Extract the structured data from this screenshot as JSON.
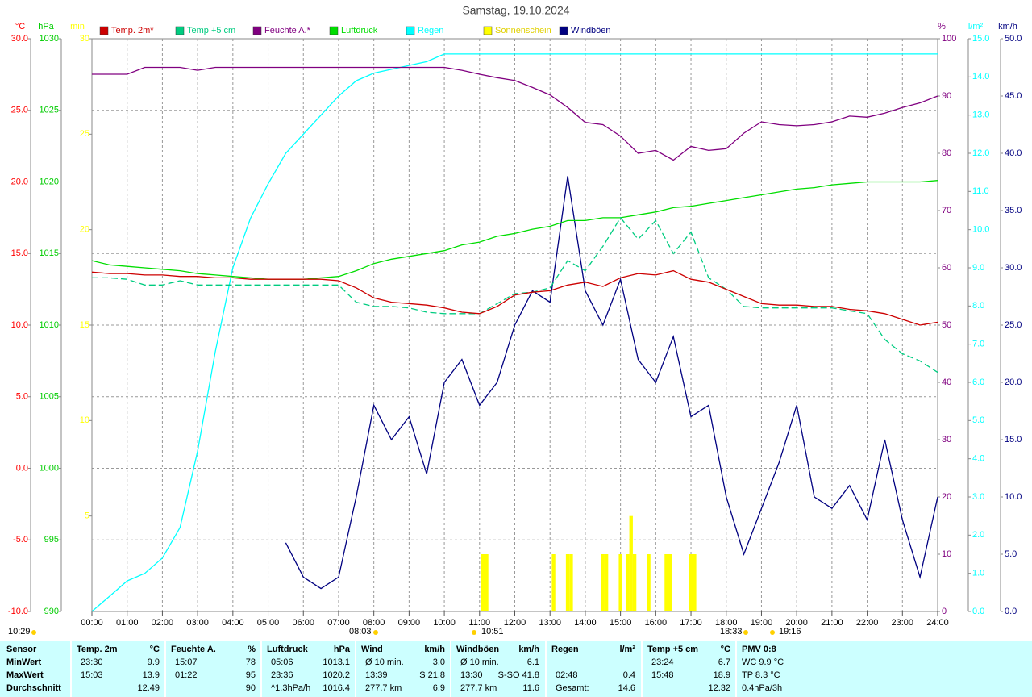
{
  "chart_data": {
    "type": "line",
    "title": "Samstag, 19.10.2024",
    "xlim": [
      0,
      24
    ],
    "xticks": [
      {
        "value": 0,
        "label": "00:00"
      },
      {
        "value": 1,
        "label": "01:00"
      },
      {
        "value": 2,
        "label": "02:00"
      },
      {
        "value": 3,
        "label": "03:00"
      },
      {
        "value": 4,
        "label": "04:00"
      },
      {
        "value": 5,
        "label": "05:00"
      },
      {
        "value": 6,
        "label": "06:00"
      },
      {
        "value": 7,
        "label": "07:00"
      },
      {
        "value": 8,
        "label": "08:00"
      },
      {
        "value": 9,
        "label": "09:00"
      },
      {
        "value": 10,
        "label": "10:00"
      },
      {
        "value": 11,
        "label": "11:00"
      },
      {
        "value": 12,
        "label": "12:00"
      },
      {
        "value": 13,
        "label": "13:00"
      },
      {
        "value": 14,
        "label": "14:00"
      },
      {
        "value": 15,
        "label": "15:00"
      },
      {
        "value": 16,
        "label": "16:00"
      },
      {
        "value": 17,
        "label": "17:00"
      },
      {
        "value": 18,
        "label": "18:00"
      },
      {
        "value": 19,
        "label": "19:00"
      },
      {
        "value": 20,
        "label": "20:00"
      },
      {
        "value": 21,
        "label": "21:00"
      },
      {
        "value": 22,
        "label": "22:00"
      },
      {
        "value": 23,
        "label": "23:00"
      },
      {
        "value": 24,
        "label": "24:00"
      }
    ],
    "grid": true,
    "axes": [
      {
        "unit": "°C",
        "color": "#ff0000",
        "lim": [
          -10,
          30
        ],
        "ticks": [
          {
            "value": -10,
            "label": "-10.0"
          },
          {
            "value": -5,
            "label": "-5.0"
          },
          {
            "value": 0,
            "label": "0.0"
          },
          {
            "value": 5,
            "label": "5.0"
          },
          {
            "value": 10,
            "label": "10.0"
          },
          {
            "value": 15,
            "label": "15.0"
          },
          {
            "value": 20,
            "label": "20.0"
          },
          {
            "value": 25,
            "label": "25.0"
          },
          {
            "value": 30,
            "label": "30.0"
          }
        ]
      },
      {
        "unit": "hPa",
        "color": "#00cc00",
        "lim": [
          990,
          1030
        ],
        "ticks": [
          990,
          995,
          1000,
          1005,
          1010,
          1015,
          1020,
          1025,
          1030
        ]
      },
      {
        "unit": "min",
        "color": "#ffff00",
        "lim": [
          0,
          30
        ],
        "ticks": [
          5,
          10,
          15,
          20,
          25,
          30
        ]
      },
      {
        "unit": "%",
        "color": "#800080",
        "lim": [
          0,
          100
        ],
        "ticks": [
          0,
          10,
          20,
          30,
          40,
          50,
          60,
          70,
          80,
          90,
          100
        ]
      },
      {
        "unit": "l/m²",
        "color": "#00ffff",
        "lim": [
          0,
          15
        ],
        "ticks": [
          {
            "value": 0,
            "label": "0.0"
          },
          {
            "value": 1,
            "label": "1.0"
          },
          {
            "value": 2,
            "label": "2.0"
          },
          {
            "value": 3,
            "label": "3.0"
          },
          {
            "value": 4,
            "label": "4.0"
          },
          {
            "value": 5,
            "label": "5.0"
          },
          {
            "value": 6,
            "label": "6.0"
          },
          {
            "value": 7,
            "label": "7.0"
          },
          {
            "value": 8,
            "label": "8.0"
          },
          {
            "value": 9,
            "label": "9.0"
          },
          {
            "value": 10,
            "label": "10.0"
          },
          {
            "value": 11,
            "label": "11.0"
          },
          {
            "value": 12,
            "label": "12.0"
          },
          {
            "value": 13,
            "label": "13.0"
          },
          {
            "value": 14,
            "label": "14.0"
          },
          {
            "value": 15,
            "label": "15.0"
          }
        ]
      },
      {
        "unit": "km/h",
        "color": "#000080",
        "lim": [
          0,
          50
        ],
        "ticks": [
          {
            "value": 0,
            "label": "0.0"
          },
          {
            "value": 5,
            "label": "5.0"
          },
          {
            "value": 10,
            "label": "10.0"
          },
          {
            "value": 15,
            "label": "15.0"
          },
          {
            "value": 20,
            "label": "20.0"
          },
          {
            "value": 25,
            "label": "25.0"
          },
          {
            "value": 30,
            "label": "30.0"
          },
          {
            "value": 35,
            "label": "35.0"
          },
          {
            "value": 40,
            "label": "40.0"
          },
          {
            "value": 45,
            "label": "45.0"
          },
          {
            "value": 50,
            "label": "50.0"
          }
        ]
      }
    ],
    "x": [
      0,
      0.5,
      1,
      1.5,
      2,
      2.5,
      3,
      3.5,
      4,
      4.5,
      5,
      5.5,
      6,
      6.5,
      7,
      7.5,
      8,
      8.5,
      9,
      9.5,
      10,
      10.5,
      11,
      11.5,
      12,
      12.5,
      13,
      13.5,
      14,
      14.5,
      15,
      15.5,
      16,
      16.5,
      17,
      17.5,
      18,
      18.5,
      19,
      19.5,
      20,
      20.5,
      21,
      21.5,
      22,
      22.5,
      23,
      23.5,
      24
    ],
    "series": [
      {
        "name": "Temp. 2m*",
        "color": "#cc0000",
        "axis": 0,
        "values": [
          13.7,
          13.6,
          13.6,
          13.5,
          13.5,
          13.4,
          13.4,
          13.3,
          13.3,
          13.2,
          13.2,
          13.2,
          13.2,
          13.2,
          13.1,
          12.6,
          11.9,
          11.6,
          11.5,
          11.4,
          11.2,
          10.9,
          10.8,
          11.3,
          12.1,
          12.3,
          12.4,
          12.8,
          13.0,
          12.7,
          13.3,
          13.6,
          13.5,
          13.8,
          13.2,
          13.0,
          12.5,
          12.0,
          11.5,
          11.4,
          11.4,
          11.3,
          11.3,
          11.1,
          11.0,
          10.8,
          10.4,
          10.0,
          10.2
        ]
      },
      {
        "name": "Temp +5 cm",
        "color": "#00cc80",
        "axis": 0,
        "dashed": true,
        "values": [
          13.3,
          13.3,
          13.2,
          12.8,
          12.8,
          13.1,
          12.8,
          12.8,
          12.8,
          12.8,
          12.8,
          12.8,
          12.8,
          12.8,
          12.8,
          11.6,
          11.3,
          11.3,
          11.2,
          10.9,
          10.8,
          10.8,
          10.8,
          11.5,
          12.2,
          12.3,
          12.6,
          14.5,
          13.8,
          15.5,
          17.5,
          16.0,
          17.3,
          15.0,
          16.5,
          13.3,
          12.5,
          11.3,
          11.2,
          11.2,
          11.2,
          11.2,
          11.2,
          11.0,
          10.8,
          9.0,
          8.0,
          7.5,
          6.7
        ]
      },
      {
        "name": "Feuchte A.*",
        "color": "#800080",
        "axis": 3,
        "values": [
          93.8,
          93.8,
          93.8,
          95,
          95,
          95,
          94.5,
          95,
          95,
          95,
          95,
          95,
          95,
          95,
          95,
          95,
          95,
          95,
          95,
          95,
          95,
          94.5,
          93.8,
          93.2,
          92.7,
          91.5,
          90.2,
          88,
          85.4,
          85,
          83,
          80,
          80.5,
          78.8,
          81.2,
          80.5,
          80.8,
          83.5,
          85.5,
          85,
          84.8,
          85,
          85.5,
          86.5,
          86.3,
          87,
          88,
          88.8,
          90
        ]
      },
      {
        "name": "Luftdruck",
        "color": "#00dd00",
        "axis": 1,
        "values": [
          1014.5,
          1014.2,
          1014.1,
          1014.0,
          1013.9,
          1013.8,
          1013.6,
          1013.5,
          1013.4,
          1013.3,
          1013.2,
          1013.2,
          1013.2,
          1013.3,
          1013.4,
          1013.8,
          1014.3,
          1014.6,
          1014.8,
          1015.0,
          1015.2,
          1015.6,
          1015.8,
          1016.2,
          1016.4,
          1016.7,
          1016.9,
          1017.3,
          1017.3,
          1017.5,
          1017.5,
          1017.7,
          1017.9,
          1018.2,
          1018.3,
          1018.5,
          1018.7,
          1018.9,
          1019.1,
          1019.3,
          1019.5,
          1019.6,
          1019.8,
          1019.9,
          1020.0,
          1020.0,
          1020.0,
          1020.0,
          1020.1
        ]
      },
      {
        "name": "Regen",
        "color": "#00ffff",
        "axis": 4,
        "values": [
          0,
          0.4,
          0.8,
          1.0,
          1.4,
          2.2,
          4.2,
          6.8,
          9.0,
          10.3,
          11.2,
          12.0,
          12.5,
          13.0,
          13.5,
          13.9,
          14.1,
          14.2,
          14.3,
          14.4,
          14.6,
          14.6,
          14.6,
          14.6,
          14.6,
          14.6,
          14.6,
          14.6,
          14.6,
          14.6,
          14.6,
          14.6,
          14.6,
          14.6,
          14.6,
          14.6,
          14.6,
          14.6,
          14.6,
          14.6,
          14.6,
          14.6,
          14.6,
          14.6,
          14.6,
          14.6,
          14.6,
          14.6,
          14.6
        ]
      },
      {
        "name": "Sonnenschein",
        "color": "#ffff00",
        "axis": 2,
        "type": "bar",
        "x": [
          11.1,
          11.2,
          13.1,
          13.5,
          13.6,
          14.5,
          14.6,
          15.0,
          15.2,
          15.3,
          15.4,
          15.8,
          16.3,
          16.4,
          17.0,
          17.1
        ],
        "values": [
          3,
          3,
          3,
          3,
          3,
          3,
          3,
          3,
          3,
          5,
          3,
          3,
          3,
          3,
          3,
          3
        ]
      },
      {
        "name": "Windböen",
        "color": "#000080",
        "axis": 5,
        "values": [
          null,
          null,
          null,
          null,
          null,
          null,
          null,
          null,
          null,
          null,
          null,
          6,
          3,
          2,
          3,
          10,
          18,
          15,
          17,
          12,
          20,
          22,
          18,
          20,
          25,
          28,
          27,
          38,
          28,
          25,
          29,
          22,
          20,
          24,
          17,
          18,
          10,
          5,
          9,
          13,
          18,
          10,
          9,
          11,
          8,
          15,
          8,
          3,
          10
        ]
      }
    ],
    "annotations": [
      "10:29",
      "08:03",
      "10:51",
      "18:33",
      "19:16"
    ]
  },
  "table": {
    "header": [
      "Sensor",
      "Temp. 2m",
      "°C",
      "Feuchte A.",
      "%",
      "Luftdruck",
      "hPa",
      "Wind",
      "km/h",
      "Windböen",
      "km/h",
      "Regen",
      "l/m²",
      "Temp +5 cm",
      "°C",
      "PMV 0:8"
    ],
    "rows": [
      {
        "label": "MinWert",
        "cells": [
          "23:30",
          "9.9",
          "15:07",
          "78",
          "05:06",
          "1013.1",
          "Ø 10 min.",
          "3.0",
          "Ø 10 min.",
          "6.1",
          null,
          null,
          "23:24",
          "6.7",
          "WC 9.9 °C"
        ]
      },
      {
        "label": "MaxWert",
        "cells": [
          "15:03",
          "13.9",
          "01:22",
          "95",
          "23:36",
          "1020.2",
          "13:39",
          "S 21.8",
          "13:30",
          "S-SO 41.8",
          "02:48",
          "0.4",
          "15:48",
          "18.9",
          "TP 8.3 °C"
        ]
      },
      {
        "label": "Durchschnitt",
        "cells": [
          null,
          "12.49",
          null,
          "90",
          "^1.3hPa/h",
          "1016.4",
          "277.7 km",
          "6.9",
          "277.7 km",
          "11.6",
          "Gesamt:",
          "14.6",
          null,
          "12.32",
          "0.4hPa/3h"
        ]
      }
    ]
  }
}
